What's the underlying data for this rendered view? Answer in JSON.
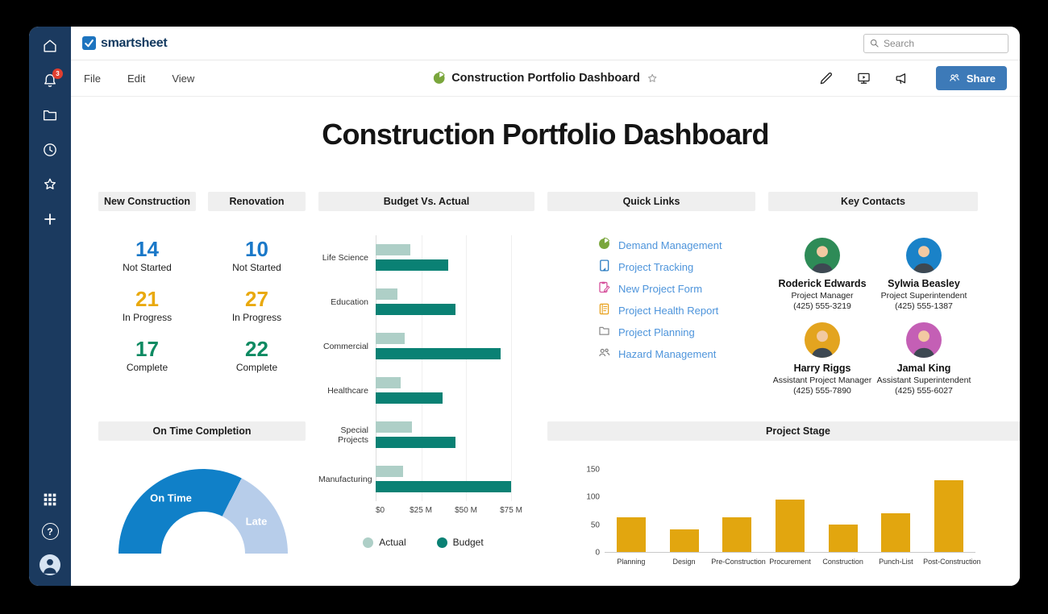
{
  "app": {
    "brand": "smartsheet",
    "search_placeholder": "Search",
    "notification_count": "3",
    "menu": [
      "File",
      "Edit",
      "View"
    ],
    "document_title": "Construction Portfolio Dashboard",
    "share_label": "Share",
    "sidebar_icons": [
      "home-icon",
      "notifications-icon",
      "folders-icon",
      "recents-icon",
      "favorites-icon",
      "create-icon",
      "apps-grid-icon",
      "help-icon",
      "user-avatar"
    ],
    "action_icons": [
      "edit-icon",
      "present-icon",
      "announce-icon"
    ]
  },
  "colors": {
    "sidebar": "#1B3A5F",
    "stat_blue": "#1A78C8",
    "stat_gold": "#E9A90E",
    "stat_green": "#0E8A62",
    "budget_actual": "#AECFC7",
    "budget_dark": "#0A8174",
    "gauge_on_time": "#1080C8",
    "gauge_late": "#B7CDEA",
    "stage_bar": "#E2A60F",
    "link_blue": "#4D94DB",
    "share_button": "#3D7AB8"
  },
  "dashboard": {
    "title": "Construction Portfolio Dashboard",
    "stats_panels": [
      {
        "title": "New Construction",
        "stats": [
          {
            "value": "14",
            "label": "Not Started",
            "color": "#1A78C8"
          },
          {
            "value": "21",
            "label": "In Progress",
            "color": "#E9A90E"
          },
          {
            "value": "17",
            "label": "Complete",
            "color": "#0E8A62"
          }
        ]
      },
      {
        "title": "Renovation",
        "stats": [
          {
            "value": "10",
            "label": "Not Started",
            "color": "#1A78C8"
          },
          {
            "value": "27",
            "label": "In Progress",
            "color": "#E9A90E"
          },
          {
            "value": "22",
            "label": "Complete",
            "color": "#0E8A62"
          }
        ]
      }
    ],
    "quick_links": {
      "title": "Quick Links",
      "links": [
        {
          "label": "Demand Management",
          "icon": "pie-chart-icon"
        },
        {
          "label": "Project Tracking",
          "icon": "sheet-icon"
        },
        {
          "label": "New Project Form",
          "icon": "form-icon"
        },
        {
          "label": "Project Health Report",
          "icon": "report-icon"
        },
        {
          "label": "Project Planning",
          "icon": "folder-icon"
        },
        {
          "label": "Hazard Management",
          "icon": "people-icon"
        }
      ]
    },
    "key_contacts": {
      "title": "Key Contacts",
      "contacts": [
        {
          "name": "Roderick Edwards",
          "role": "Project Manager",
          "phone": "(425) 555-3219",
          "avatar_color": "#2E8B57"
        },
        {
          "name": "Sylwia Beasley",
          "role": "Project Superintendent",
          "phone": "(425) 555-1387",
          "avatar_color": "#1A82C8"
        },
        {
          "name": "Harry Riggs",
          "role": "Assistant Project Manager",
          "phone": "(425) 555-7890",
          "avatar_color": "#E3A41F"
        },
        {
          "name": "Jamal King",
          "role": "Assistant Superintendent",
          "phone": "(425) 555-6027",
          "avatar_color": "#C45FB5"
        }
      ]
    }
  },
  "chart_data": [
    {
      "type": "bar",
      "orientation": "horizontal",
      "title": "Budget Vs. Actual",
      "categories": [
        "Life Science",
        "Education",
        "Commercial",
        "Healthcare",
        "Special Projects",
        "Manufacturing"
      ],
      "series": [
        {
          "name": "Actual",
          "color": "#AECFC7",
          "values": [
            19,
            12,
            16,
            14,
            20,
            15
          ]
        },
        {
          "name": "Budget",
          "color": "#0A8174",
          "values": [
            40,
            44,
            69,
            37,
            44,
            75
          ]
        }
      ],
      "unit": "$ millions",
      "xlim": [
        0,
        75
      ],
      "x_ticks": [
        "$0",
        "$25 M",
        "$50 M",
        "$75 M"
      ],
      "legend_position": "bottom",
      "grid": true
    },
    {
      "type": "pie",
      "style": "half-donut-gauge",
      "title": "On Time Completion",
      "slices": [
        {
          "label": "On Time",
          "value": 65,
          "color": "#1080C8"
        },
        {
          "label": "Late",
          "value": 35,
          "color": "#B7CDEA"
        }
      ]
    },
    {
      "type": "bar",
      "title": "Project Stage",
      "categories": [
        "Planning",
        "Design",
        "Pre-Construction",
        "Procurement",
        "Construction",
        "Punch-List",
        "Post-Construction"
      ],
      "values": [
        62,
        41,
        62,
        95,
        50,
        70,
        130
      ],
      "color": "#E2A60F",
      "ylim": [
        0,
        150
      ],
      "y_ticks": [
        150,
        100,
        50,
        0
      ],
      "grid": false
    }
  ]
}
